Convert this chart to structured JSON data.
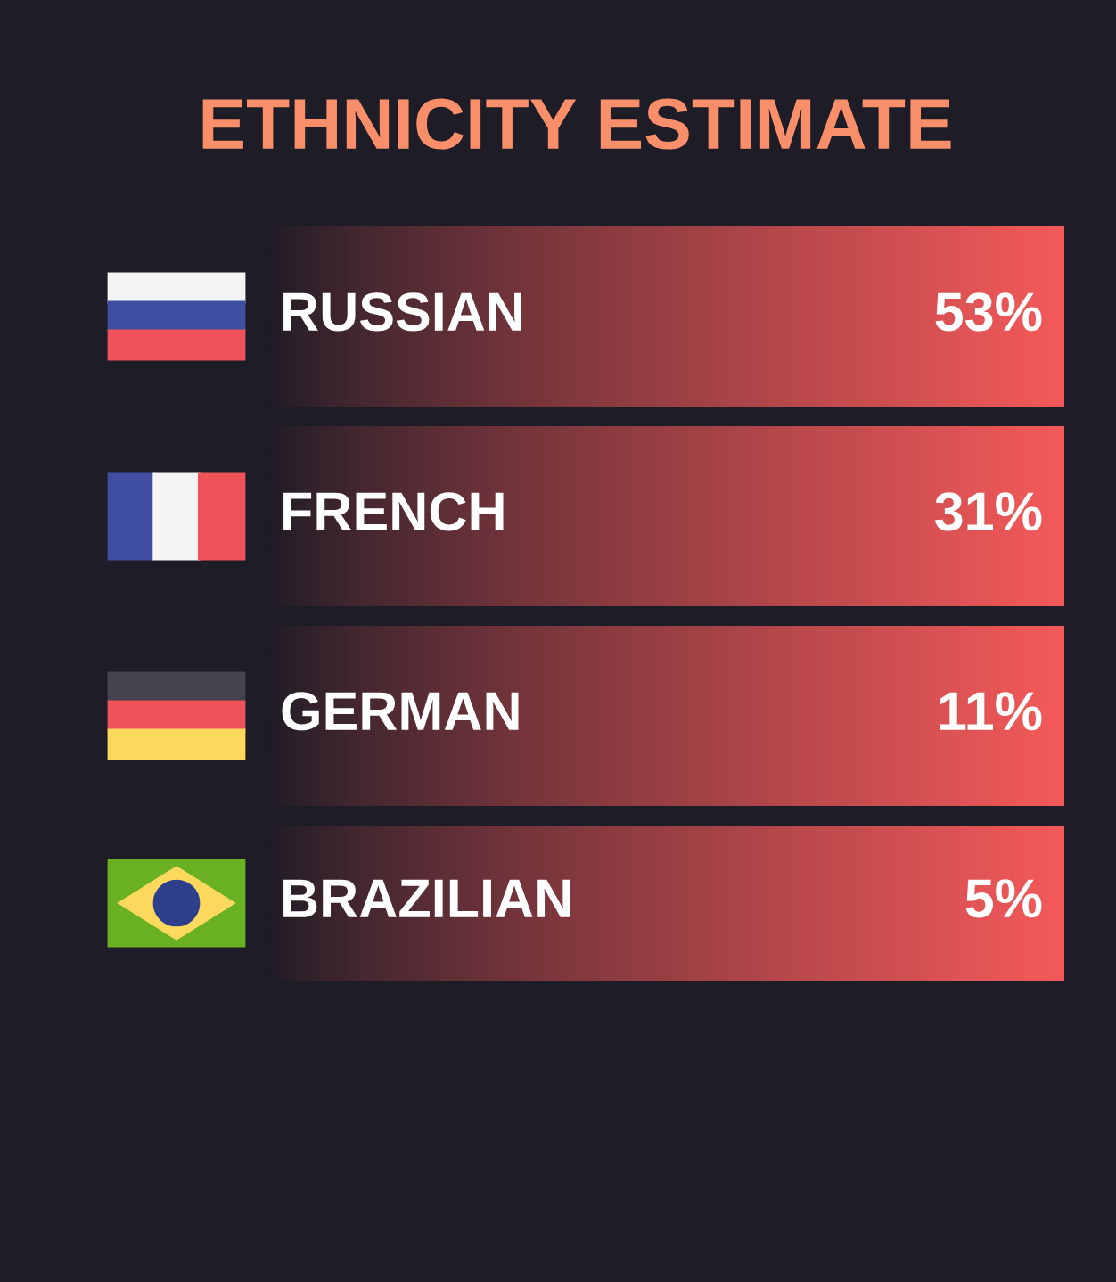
{
  "chart_data": {
    "type": "other",
    "title": "ETHNICITY ESTIMATE",
    "categories": [
      "RUSSIAN",
      "FRENCH",
      "GERMAN",
      "BRAZILIAN"
    ],
    "values": [
      53,
      31,
      11,
      5
    ],
    "value_labels": [
      "53%",
      "31%",
      "11%",
      "5%"
    ],
    "colors": [
      "#f55a5a",
      "#f55a5a",
      "#f55a5a",
      "#f55a5a"
    ]
  }
}
